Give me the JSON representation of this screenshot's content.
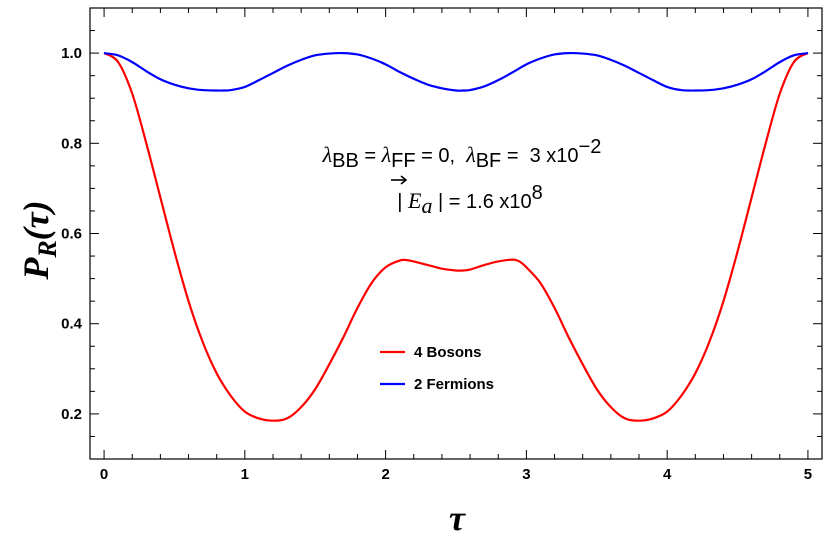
{
  "chart_data": {
    "type": "line",
    "xlabel": "τ",
    "ylabel": {
      "base": "P",
      "sub": "R",
      "arg": "(τ)"
    },
    "xlim": [
      -0.1,
      5.1
    ],
    "ylim": [
      0.1,
      1.1
    ],
    "xticks": [
      0,
      1,
      2,
      3,
      4,
      5
    ],
    "xtick_labels": [
      "0",
      "1",
      "2",
      "3",
      "4",
      "5"
    ],
    "yticks": [
      0.2,
      0.4,
      0.6,
      0.8,
      1.0
    ],
    "ytick_labels": [
      "0.2",
      "0.4",
      "0.6",
      "0.8",
      "1.0"
    ],
    "grid": false,
    "legend_position": "center-bottom",
    "annotation": {
      "line1": {
        "lambda": "λ",
        "sub_bb": "BB",
        "eq1": " = ",
        "sub_ff": "FF",
        "eq2": " = 0,  ",
        "sub_bf": "BF",
        "eq3": " =  3 x10",
        "exp": "−2"
      },
      "line2": {
        "bar_open": "| ",
        "e": "E",
        "sub_a": "a",
        "bar_close": " | = 1.6 x10",
        "exp": "8"
      }
    },
    "series": [
      {
        "name": "4 Bosons",
        "color": "#ff0000",
        "x": [
          0,
          0.1,
          0.2,
          0.3,
          0.4,
          0.5,
          0.6,
          0.7,
          0.8,
          0.9,
          1.0,
          1.1,
          1.2,
          1.3,
          1.4,
          1.5,
          1.6,
          1.7,
          1.8,
          1.9,
          2.0,
          2.1,
          2.15,
          2.2,
          2.3,
          2.4,
          2.5,
          2.55,
          2.6,
          2.7,
          2.8,
          2.9,
          2.95,
          3.0,
          3.1,
          3.2,
          3.3,
          3.4,
          3.5,
          3.6,
          3.7,
          3.8,
          3.9,
          4.0,
          4.1,
          4.2,
          4.3,
          4.4,
          4.5,
          4.6,
          4.7,
          4.8,
          4.9,
          5.0
        ],
        "y": [
          1.0,
          0.98,
          0.91,
          0.8,
          0.68,
          0.56,
          0.45,
          0.36,
          0.29,
          0.24,
          0.205,
          0.19,
          0.185,
          0.19,
          0.215,
          0.255,
          0.31,
          0.37,
          0.435,
          0.49,
          0.525,
          0.54,
          0.541,
          0.538,
          0.53,
          0.522,
          0.518,
          0.518,
          0.52,
          0.53,
          0.538,
          0.542,
          0.538,
          0.525,
          0.49,
          0.435,
          0.37,
          0.31,
          0.255,
          0.215,
          0.19,
          0.185,
          0.19,
          0.205,
          0.24,
          0.29,
          0.36,
          0.45,
          0.56,
          0.68,
          0.8,
          0.91,
          0.98,
          1.0
        ]
      },
      {
        "name": "2 Fermions",
        "color": "#0000ff",
        "x": [
          0,
          0.1,
          0.2,
          0.3,
          0.4,
          0.5,
          0.6,
          0.7,
          0.8,
          0.85,
          0.9,
          1.0,
          1.1,
          1.2,
          1.3,
          1.4,
          1.5,
          1.6,
          1.7,
          1.8,
          1.9,
          2.0,
          2.1,
          2.2,
          2.3,
          2.4,
          2.5,
          2.55,
          2.6,
          2.7,
          2.8,
          2.9,
          3.0,
          3.1,
          3.2,
          3.3,
          3.4,
          3.5,
          3.6,
          3.7,
          3.8,
          3.9,
          4.0,
          4.1,
          4.2,
          4.3,
          4.4,
          4.5,
          4.6,
          4.7,
          4.8,
          4.9,
          5.0
        ],
        "y": [
          1.0,
          0.995,
          0.98,
          0.96,
          0.942,
          0.93,
          0.922,
          0.918,
          0.917,
          0.917,
          0.918,
          0.925,
          0.94,
          0.956,
          0.972,
          0.985,
          0.995,
          0.999,
          1.0,
          0.997,
          0.988,
          0.975,
          0.958,
          0.943,
          0.93,
          0.922,
          0.917,
          0.917,
          0.918,
          0.926,
          0.94,
          0.957,
          0.975,
          0.988,
          0.997,
          1.0,
          0.999,
          0.995,
          0.985,
          0.972,
          0.956,
          0.94,
          0.925,
          0.918,
          0.917,
          0.918,
          0.922,
          0.93,
          0.942,
          0.96,
          0.98,
          0.995,
          1.0
        ]
      }
    ]
  }
}
